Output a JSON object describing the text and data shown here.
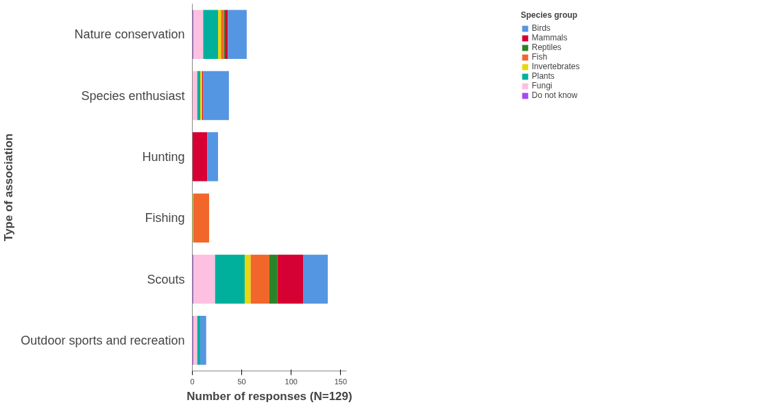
{
  "chart_data": {
    "type": "bar",
    "orientation": "horizontal",
    "stacked": true,
    "xlabel": "Number of responses (N=129)",
    "ylabel": "Type of association",
    "legend_title": "Species group",
    "categories": [
      "Nature conservation",
      "Species enthusiast",
      "Hunting",
      "Fishing",
      "Scouts",
      "Outdoor sports and recreation"
    ],
    "series": [
      {
        "name": "Do not know",
        "color": "#a748f5",
        "values": [
          1,
          0,
          0,
          0,
          1,
          1
        ]
      },
      {
        "name": "Fungi",
        "color": "#fdc0e0",
        "values": [
          10,
          5,
          0,
          0,
          22,
          4
        ]
      },
      {
        "name": "Plants",
        "color": "#00b09c",
        "values": [
          15,
          3,
          0,
          0,
          30,
          3
        ]
      },
      {
        "name": "Invertebrates",
        "color": "#e5d80f",
        "values": [
          3,
          2,
          0,
          1,
          6,
          0
        ]
      },
      {
        "name": "Fish",
        "color": "#f1672b",
        "values": [
          3,
          0,
          0,
          16,
          19,
          0
        ]
      },
      {
        "name": "Reptiles",
        "color": "#2a8427",
        "values": [
          1,
          0,
          0,
          0,
          8,
          0
        ]
      },
      {
        "name": "Mammals",
        "color": "#d70033",
        "values": [
          3,
          1,
          15,
          0,
          26,
          0
        ]
      },
      {
        "name": "Birds",
        "color": "#5596e3",
        "values": [
          19,
          26,
          11,
          0,
          25,
          6
        ]
      }
    ],
    "xlim": [
      0,
      156
    ],
    "xticks": [
      0,
      50,
      100,
      150
    ],
    "legend": "right"
  }
}
